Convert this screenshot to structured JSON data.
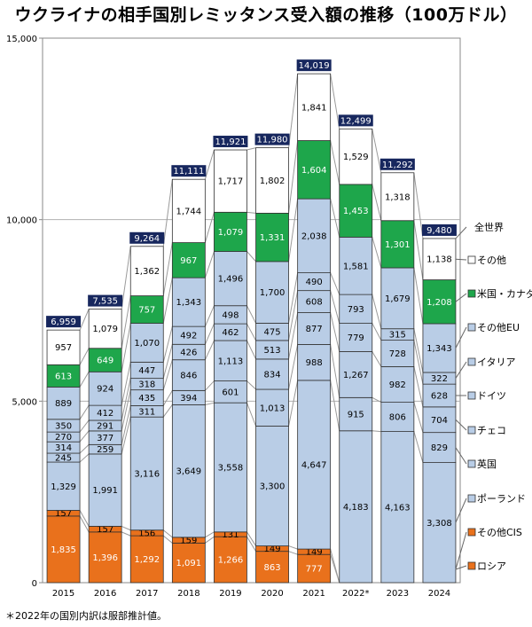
{
  "title": "ウクライナの相手国別レミッタンス受入額の推移（100万ドル）",
  "footnote": "＊2022年の国別内訳は服部推計値。",
  "colors": {
    "russia": "#e9711c",
    "cis": "#e9711c",
    "eu": "#b9cde6",
    "usca": "#1ea64b",
    "other": "#ffffff",
    "total_box": "#17275e",
    "connector": "#9a9a9a"
  },
  "chart_data": {
    "type": "bar",
    "stacked": true,
    "title": "ウクライナの相手国別レミッタンス受入額の推移（100万ドル）",
    "categories": [
      "2015",
      "2016",
      "2017",
      "2018",
      "2019",
      "2020",
      "2021",
      "2022*",
      "2023",
      "2024"
    ],
    "ylim": [
      0,
      15000
    ],
    "yticks": [
      0,
      5000,
      10000,
      15000
    ],
    "ytick_labels": [
      "0",
      "5,000",
      "10,000",
      "15,000"
    ],
    "totals": [
      6959,
      7535,
      9264,
      11111,
      11921,
      11980,
      14019,
      12499,
      11292,
      9480
    ],
    "total_labels": [
      "6,959",
      "7,535",
      "9,264",
      "11,111",
      "11,921",
      "11,980",
      "14,019",
      "12,499",
      "11,292",
      "9,480"
    ],
    "total_legend": "全世界",
    "series": [
      {
        "key": "russia",
        "name": "ロシア",
        "color_key": "russia",
        "values": [
          1835,
          1396,
          1292,
          1091,
          1266,
          863,
          777,
          null,
          null,
          null
        ],
        "labels": [
          "1,835",
          "1,396",
          "1,292",
          "1,091",
          "1,266",
          "863",
          "777",
          null,
          null,
          null
        ]
      },
      {
        "key": "cis",
        "name": "その他CIS",
        "color_key": "cis",
        "values": [
          157,
          157,
          156,
          159,
          131,
          149,
          149,
          null,
          null,
          null
        ],
        "labels": [
          "157",
          "157",
          "156",
          "159",
          "131",
          "149",
          "149",
          null,
          null,
          null
        ]
      },
      {
        "key": "poland",
        "name": "ポーランド",
        "color_key": "eu",
        "values": [
          1329,
          1991,
          3116,
          3649,
          3558,
          3300,
          4647,
          4183,
          4163,
          3308
        ],
        "labels": [
          "1,329",
          "1,991",
          "3,116",
          "3,649",
          "3,558",
          "3,300",
          "4,647",
          "4,183",
          "4,163",
          "3,308"
        ]
      },
      {
        "key": "uk",
        "name": "英国",
        "color_key": "eu",
        "values": [
          245,
          259,
          311,
          394,
          601,
          1013,
          988,
          915,
          806,
          829
        ],
        "labels": [
          "245",
          "259",
          "311",
          "394",
          "601",
          "1,013",
          "988",
          "915",
          "806",
          "829"
        ]
      },
      {
        "key": "czech",
        "name": "チェコ",
        "color_key": "eu",
        "values": [
          314,
          377,
          435,
          846,
          1113,
          834,
          877,
          1267,
          982,
          704
        ],
        "labels": [
          "314",
          "377",
          "435",
          "846",
          "1,113",
          "834",
          "877",
          "1,267",
          "982",
          "704"
        ]
      },
      {
        "key": "germany",
        "name": "ドイツ",
        "color_key": "eu",
        "values": [
          270,
          291,
          318,
          426,
          462,
          513,
          608,
          779,
          728,
          628
        ],
        "labels": [
          "270",
          "291",
          "318",
          "426",
          "462",
          "513",
          "608",
          "779",
          "728",
          "628"
        ]
      },
      {
        "key": "italy",
        "name": "イタリア",
        "color_key": "eu",
        "values": [
          350,
          412,
          447,
          492,
          498,
          475,
          490,
          793,
          315,
          322
        ],
        "labels": [
          "350",
          "412",
          "447",
          "492",
          "498",
          "475",
          "490",
          "793",
          "315",
          "322"
        ]
      },
      {
        "key": "othereu",
        "name": "その他EU",
        "color_key": "eu",
        "values": [
          889,
          924,
          1070,
          1343,
          1496,
          1700,
          2038,
          1581,
          1679,
          1343
        ],
        "labels": [
          "889",
          "924",
          "1,070",
          "1,343",
          "1,496",
          "1,700",
          "2,038",
          "1,581",
          "1,679",
          "1,343"
        ]
      },
      {
        "key": "usca",
        "name": "米国・カナダ",
        "color_key": "usca",
        "values": [
          613,
          649,
          757,
          967,
          1079,
          1331,
          1604,
          1453,
          1301,
          1208
        ],
        "labels": [
          "613",
          "649",
          "757",
          "967",
          "1,079",
          "1,331",
          "1,604",
          "1,453",
          "1,301",
          "1,208"
        ]
      },
      {
        "key": "other",
        "name": "その他",
        "color_key": "other",
        "values": [
          957,
          1079,
          1362,
          1744,
          1717,
          1802,
          1841,
          1529,
          1318,
          1138
        ],
        "labels": [
          "957",
          "1,079",
          "1,362",
          "1,744",
          "1,717",
          "1,802",
          "1,841",
          "1,529",
          "1,318",
          "1,138"
        ]
      }
    ],
    "legend": [
      "全世界",
      "その他",
      "米国・カナダ",
      "その他EU",
      "イタリア",
      "ドイツ",
      "チェコ",
      "英国",
      "ポーランド",
      "その他CIS",
      "ロシア"
    ]
  }
}
